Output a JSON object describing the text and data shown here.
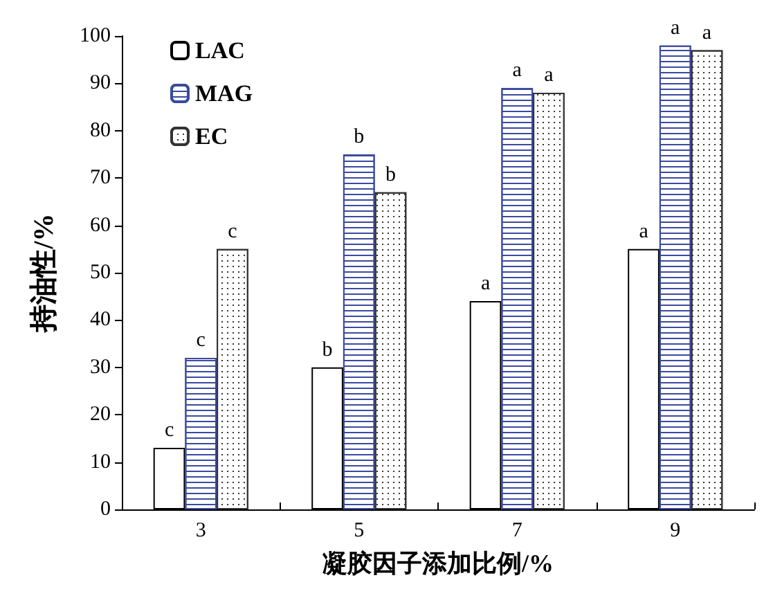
{
  "chart_data": {
    "type": "bar",
    "xlabel": "凝胶因子添加比例/%",
    "ylabel": "持油性/%",
    "categories": [
      "3",
      "5",
      "7",
      "9"
    ],
    "series": [
      {
        "name": "LAC",
        "color": "#ffffff",
        "values": [
          13,
          30,
          44,
          55
        ],
        "value_labels": [
          "c",
          "b",
          "a",
          "a"
        ]
      },
      {
        "name": "MAG",
        "color": "#3a4aa0",
        "values": [
          32,
          75,
          89,
          98
        ],
        "value_labels": [
          "c",
          "b",
          "a",
          "a"
        ]
      },
      {
        "name": "EC",
        "color": "#333333",
        "values": [
          55,
          67,
          88,
          97
        ],
        "value_labels": [
          "c",
          "b",
          "a",
          "a"
        ]
      }
    ],
    "ylim": [
      0,
      100
    ],
    "yticks": [
      0,
      10,
      20,
      30,
      40,
      50,
      60,
      70,
      80,
      90,
      100
    ],
    "grid": false,
    "legend": "top left"
  }
}
